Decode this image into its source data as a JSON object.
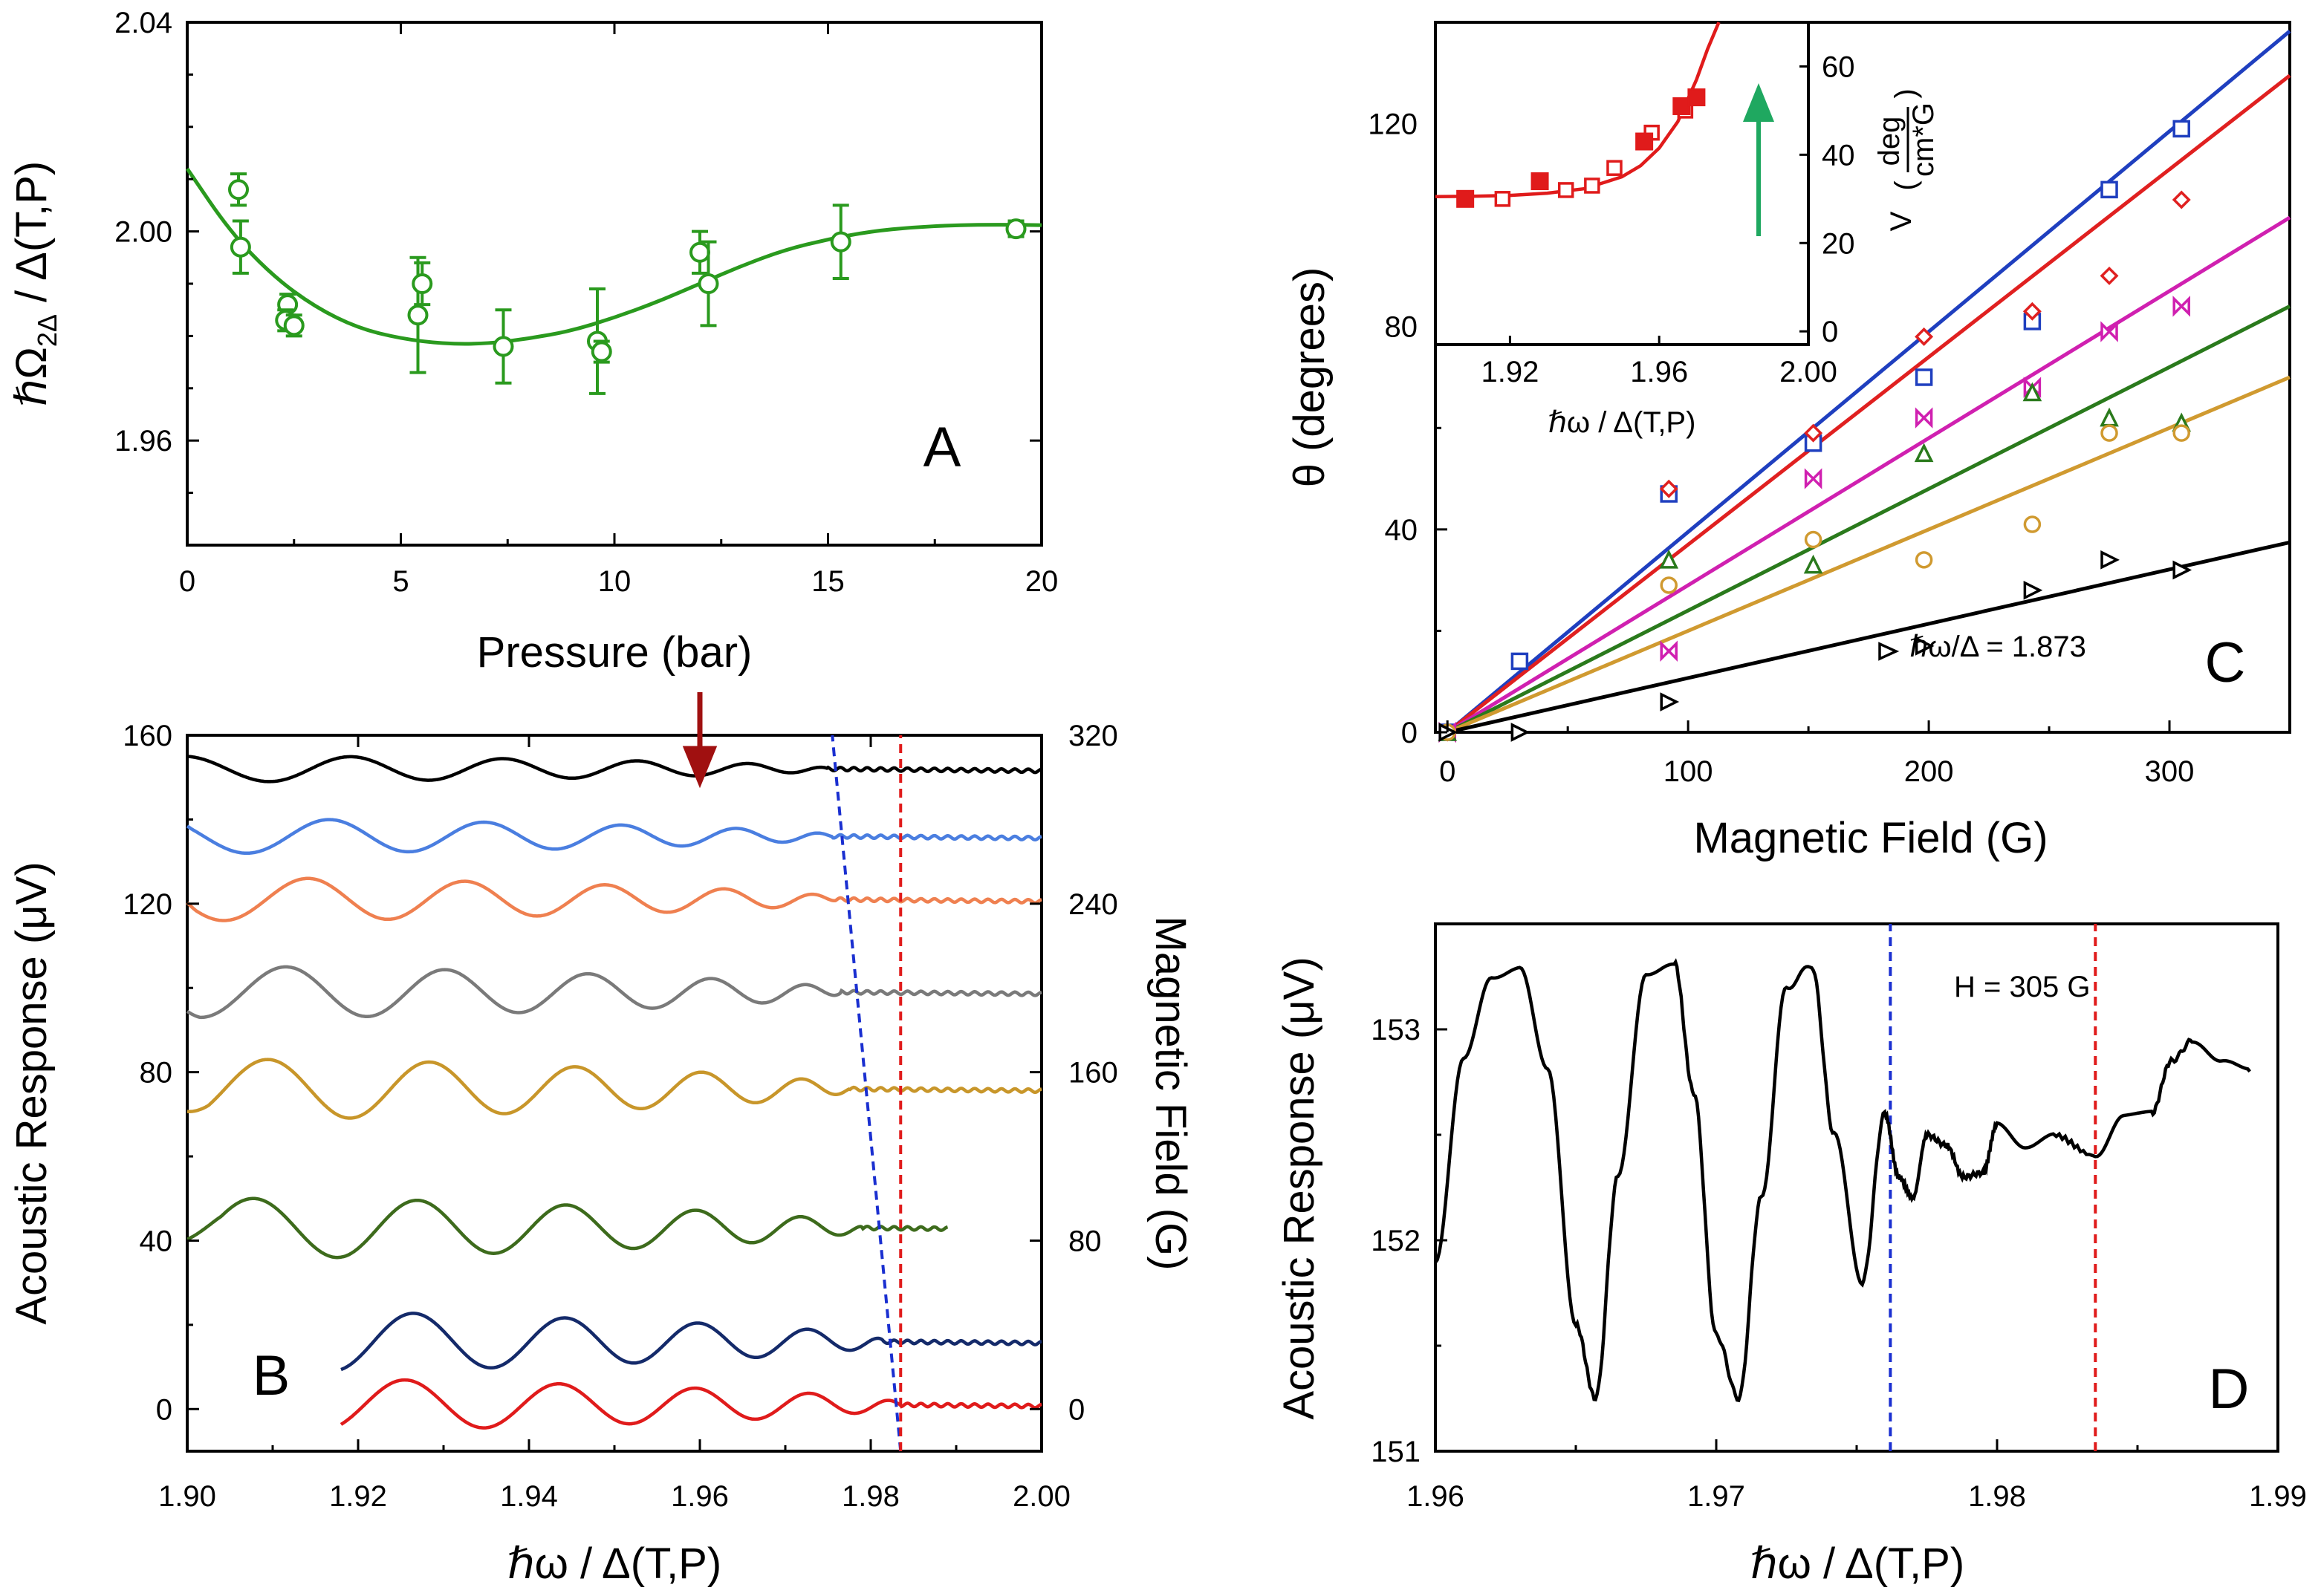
{
  "chart_data": [
    {
      "panel": "A",
      "type": "scatter",
      "panel_label": "A",
      "xlabel": "Pressure (bar)",
      "ylabel": "ℏΩ₂Δ / Δ(T,P)",
      "ylabel_main": "ℏΩ",
      "ylabel_sub": "2Δ",
      "ylabel_tail": " / Δ(T,P)",
      "xlim": [
        0,
        20
      ],
      "ylim": [
        1.94,
        2.04
      ],
      "xticks": [
        0,
        5,
        10,
        15,
        20
      ],
      "yticks": [
        1.96,
        2.0,
        2.04
      ],
      "ytick_labels": [
        "1.96",
        "2.00",
        "2.04"
      ],
      "color": "#2a9a1e",
      "points": [
        {
          "x": 1.2,
          "y": 2.008,
          "err": 0.003
        },
        {
          "x": 1.25,
          "y": 1.997,
          "err": 0.005
        },
        {
          "x": 2.35,
          "y": 1.986,
          "err": 0.002
        },
        {
          "x": 2.3,
          "y": 1.983,
          "err": 0.002
        },
        {
          "x": 2.5,
          "y": 1.982,
          "err": 0.002
        },
        {
          "x": 5.4,
          "y": 1.984,
          "err": 0.011
        },
        {
          "x": 5.5,
          "y": 1.99,
          "err": 0.004
        },
        {
          "x": 7.4,
          "y": 1.978,
          "err": 0.007
        },
        {
          "x": 9.6,
          "y": 1.979,
          "err": 0.01
        },
        {
          "x": 9.7,
          "y": 1.977,
          "err": 0.002
        },
        {
          "x": 12.0,
          "y": 1.996,
          "err": 0.004
        },
        {
          "x": 12.2,
          "y": 1.99,
          "err": 0.008
        },
        {
          "x": 15.3,
          "y": 1.998,
          "err": 0.007
        },
        {
          "x": 19.4,
          "y": 2.0005,
          "err": 0.0015
        }
      ],
      "fit": {
        "x": [
          0,
          1,
          2,
          3,
          4,
          5,
          6,
          7,
          8,
          9,
          10,
          11,
          12,
          13,
          14,
          15,
          16,
          17,
          18,
          19,
          20
        ],
        "y": [
          2.012,
          2.0,
          1.9915,
          1.9855,
          1.9815,
          1.9795,
          1.9785,
          1.9785,
          1.9795,
          1.981,
          1.9835,
          1.9865,
          1.99,
          1.9935,
          1.9965,
          1.9985,
          2.0,
          2.0008,
          2.0012,
          2.0013,
          2.0012
        ]
      }
    },
    {
      "panel": "B",
      "type": "line",
      "panel_label": "B",
      "xlabel": "ℏω / Δ(T,P)",
      "ylabel": "Acoustic Response (μV)",
      "y2label": "Magnetic Field (G)",
      "xlim": [
        1.9,
        2.0
      ],
      "ylim": [
        -10,
        160
      ],
      "xticks": [
        1.9,
        1.92,
        1.94,
        1.96,
        1.98,
        2.0
      ],
      "xtick_labels": [
        "1.90",
        "1.92",
        "1.94",
        "1.96",
        "1.98",
        "2.00"
      ],
      "yticks": [
        0,
        40,
        80,
        120,
        160
      ],
      "y2ticks": [
        0,
        80,
        160,
        240,
        320
      ],
      "series": [
        {
          "name": "trace-0G",
          "color": "#e01b1b",
          "offset": 1,
          "x_start": 1.918,
          "x_end": 2.0,
          "amplitude": 6,
          "x_center": 1.9835
        },
        {
          "name": "trace-30G",
          "color": "#142a6a",
          "offset": 16,
          "x_start": 1.918,
          "x_end": 2.0,
          "amplitude": 7,
          "x_center": 1.9815
        },
        {
          "name": "trace-90G",
          "color": "#3d6b1c",
          "offset": 43,
          "x_start": 1.9,
          "x_end": 1.989,
          "amplitude": 7,
          "x_center": 1.979
        },
        {
          "name": "trace-150G",
          "color": "#c8962a",
          "offset": 76,
          "x_start": 1.9,
          "x_end": 2.0,
          "amplitude": 7,
          "x_center": 1.9775
        },
        {
          "name": "trace-200G",
          "color": "#7a7a7a",
          "offset": 99,
          "x_start": 1.9,
          "x_end": 2.0,
          "amplitude": 6,
          "x_center": 1.9765
        },
        {
          "name": "trace-245G",
          "color": "#ef8050",
          "offset": 121,
          "x_start": 1.9,
          "x_end": 2.0,
          "amplitude": 5,
          "x_center": 1.976
        },
        {
          "name": "trace-275G",
          "color": "#4a7ee0",
          "offset": 136,
          "x_start": 1.9,
          "x_end": 2.0,
          "amplitude": 4,
          "x_center": 1.9755
        },
        {
          "name": "trace-305G",
          "color": "#000000",
          "offset": 152,
          "x_start": 1.9,
          "x_end": 2.0,
          "amplitude": 3,
          "x_center": 1.975
        }
      ],
      "blue_dashed": {
        "x": [
          1.9835,
          1.9755
        ],
        "y": [
          -10,
          160
        ]
      },
      "red_dashed_x": 1.9835,
      "arrow_x": 1.96
    },
    {
      "panel": "C",
      "type": "scatter",
      "panel_label": "C",
      "xlabel": "Magnetic Field (G)",
      "ylabel": "θ (degrees)",
      "xlim": [
        -5,
        350
      ],
      "ylim": [
        0,
        140
      ],
      "xticks": [
        0,
        100,
        200,
        300
      ],
      "yticks": [
        0,
        40,
        80,
        120
      ],
      "annotation": "ℏω/Δ = 1.873",
      "series": [
        {
          "name": "blue-squares",
          "color": "#1f3fbf",
          "marker": "square",
          "slope": 0.395,
          "x": [
            0,
            30,
            92,
            152,
            198,
            243,
            275,
            305
          ],
          "y": [
            0,
            14,
            47,
            57,
            70,
            81,
            107,
            119
          ]
        },
        {
          "name": "red-diamonds",
          "color": "#e02020",
          "marker": "diamond",
          "slope": 0.37,
          "x": [
            0,
            92,
            152,
            198,
            243,
            275,
            305
          ],
          "y": [
            0,
            48,
            59,
            78,
            83,
            90,
            105
          ]
        },
        {
          "name": "magenta-bowties",
          "color": "#d020b0",
          "marker": "bowtie",
          "slope": 0.29,
          "x": [
            0,
            92,
            152,
            198,
            243,
            275,
            305
          ],
          "y": [
            0,
            16,
            50,
            62,
            68,
            79,
            84
          ]
        },
        {
          "name": "green-triangles",
          "color": "#2a7a1c",
          "marker": "triangle",
          "slope": 0.24,
          "x": [
            0,
            92,
            152,
            198,
            243,
            275,
            305
          ],
          "y": [
            0,
            34,
            33,
            55,
            67,
            62,
            61
          ]
        },
        {
          "name": "orange-circles",
          "color": "#d09a30",
          "marker": "circle",
          "slope": 0.2,
          "x": [
            0,
            92,
            152,
            198,
            243,
            275,
            305
          ],
          "y": [
            0,
            29,
            38,
            34,
            41,
            59,
            59
          ]
        },
        {
          "name": "black-triangles",
          "color": "#000000",
          "marker": "tri-right",
          "slope": 0.107,
          "x": [
            0,
            30,
            92,
            198,
            243,
            275,
            305
          ],
          "y": [
            0,
            0,
            6,
            17,
            28,
            34,
            32
          ]
        }
      ]
    },
    {
      "panel": "C-inset",
      "type": "scatter",
      "xlabel": "ℏω / Δ(T,P)",
      "ylabel": "V",
      "ylabel_unit_num": "deg",
      "ylabel_unit_den": "cm*G",
      "xlim": [
        1.9,
        2.0
      ],
      "ylim": [
        -3,
        70
      ],
      "xticks": [
        1.92,
        1.96,
        2.0
      ],
      "xtick_labels": [
        "1.92",
        "1.96",
        "2.00"
      ],
      "yticks": [
        0,
        20,
        40,
        60
      ],
      "color": "#e01b1b",
      "filled": {
        "x": [
          1.908,
          1.928,
          1.956,
          1.966,
          1.97
        ],
        "y": [
          30,
          34,
          43,
          51,
          53
        ]
      },
      "open": {
        "x": [
          1.918,
          1.935,
          1.942,
          1.948,
          1.958,
          1.967
        ],
        "y": [
          30,
          32,
          33,
          37,
          45,
          50
        ]
      },
      "fit": {
        "x": [
          1.9,
          1.91,
          1.92,
          1.93,
          1.94,
          1.95,
          1.955,
          1.96,
          1.965,
          1.97,
          1.973,
          1.976
        ],
        "y": [
          30.5,
          30.6,
          30.8,
          31.3,
          32.3,
          35,
          37.5,
          41.5,
          47.5,
          57,
          64,
          73
        ]
      }
    },
    {
      "panel": "D",
      "type": "line",
      "panel_label": "D",
      "xlabel": "ℏω / Δ(T,P)",
      "ylabel": "Acoustic Response (μV)",
      "annotation": "H = 305 G",
      "xlim": [
        1.96,
        1.99
      ],
      "ylim": [
        151,
        153.5
      ],
      "xticks": [
        1.96,
        1.97,
        1.98,
        1.99
      ],
      "xtick_labels": [
        "1.96",
        "1.97",
        "1.98",
        "1.99"
      ],
      "yticks": [
        151,
        152,
        153
      ],
      "color": "#000000",
      "x": [
        1.96,
        1.961,
        1.962,
        1.963,
        1.964,
        1.965,
        1.9657,
        1.9665,
        1.9675,
        1.9685,
        1.9692,
        1.97,
        1.9708,
        1.9716,
        1.9725,
        1.9734,
        1.9742,
        1.9752,
        1.976,
        1.9765,
        1.977,
        1.9775,
        1.9782,
        1.9788,
        1.9795,
        1.98,
        1.981,
        1.982,
        1.9835,
        1.9845,
        1.9855,
        1.9862,
        1.987,
        1.988,
        1.989
      ],
      "y": [
        151.9,
        152.85,
        153.25,
        153.3,
        152.8,
        151.6,
        151.25,
        152.3,
        153.25,
        153.32,
        152.7,
        151.55,
        151.25,
        152.2,
        153.2,
        153.3,
        152.5,
        151.8,
        152.6,
        152.3,
        152.2,
        152.5,
        152.45,
        152.3,
        152.32,
        152.55,
        152.45,
        152.5,
        152.4,
        152.6,
        152.6,
        152.85,
        152.95,
        152.85,
        152.8
      ]
    }
  ]
}
